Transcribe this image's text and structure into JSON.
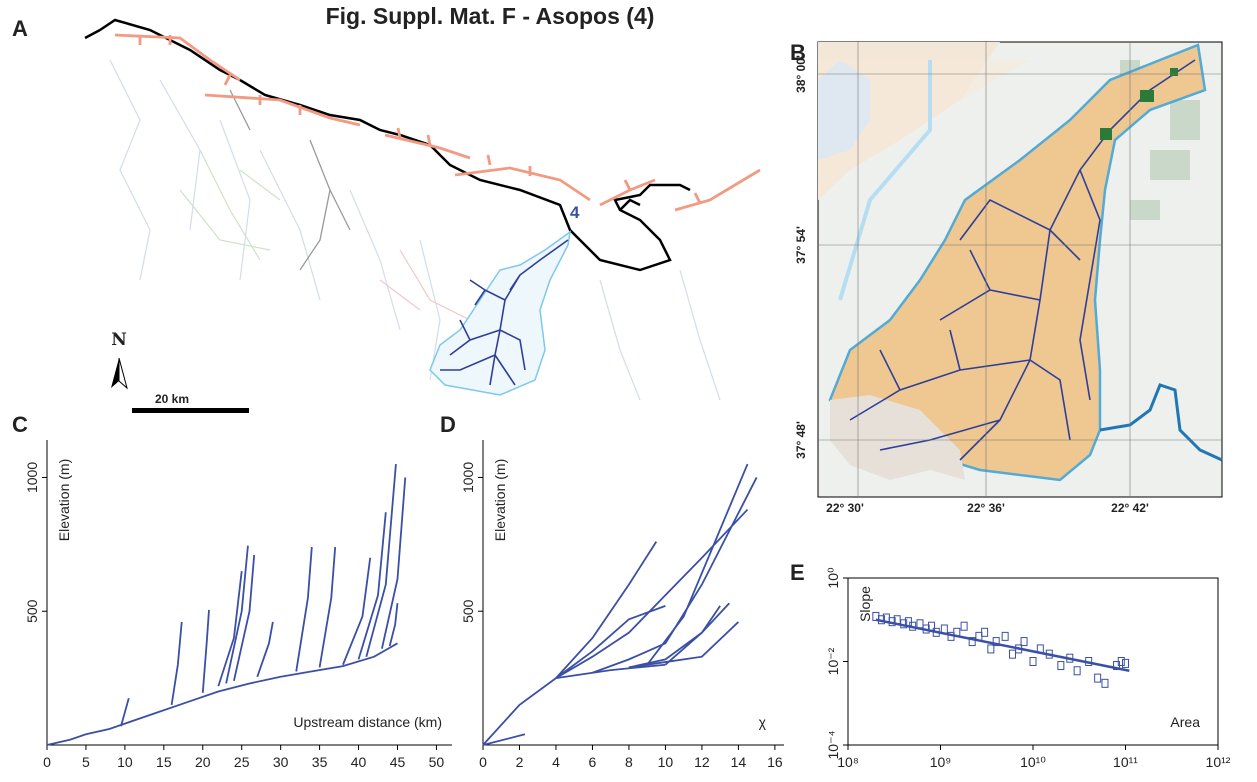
{
  "title": "Fig. Suppl. Mat. F -  Asopos (4)",
  "panels": [
    "A",
    "B",
    "C",
    "D",
    "E"
  ],
  "map_a": {
    "north": "N",
    "scale": "20 km",
    "basin": "4"
  },
  "map_b": {
    "lat_labels": [
      "38° 00'",
      "37° 54'",
      "37° 48'"
    ],
    "lon_labels": [
      "22° 30'",
      "22° 36'",
      "22° 42'"
    ]
  },
  "chart_data": [
    {
      "type": "line",
      "y_label": "Elevation (m)",
      "x_label": "Upstream distance (km)",
      "color": "#3a4fa6",
      "xlim": [
        0,
        52
      ],
      "ylim": [
        0,
        1140
      ],
      "xticks": [
        0,
        5,
        10,
        15,
        20,
        25,
        30,
        35,
        40,
        45,
        50
      ],
      "yticks": [
        500,
        1000
      ],
      "series": [
        {
          "x": [
            0,
            3,
            5,
            8,
            10,
            14,
            18,
            22,
            26,
            30,
            34,
            38,
            42,
            45
          ],
          "values": [
            0,
            20,
            40,
            60,
            80,
            120,
            160,
            200,
            230,
            255,
            275,
            295,
            330,
            380
          ]
        },
        {
          "x": [
            9.5,
            10.5
          ],
          "values": [
            70,
            175
          ]
        },
        {
          "x": [
            16,
            16.8,
            17.3
          ],
          "values": [
            150,
            300,
            460
          ]
        },
        {
          "x": [
            20,
            20.5,
            20.8
          ],
          "values": [
            195,
            380,
            505
          ]
        },
        {
          "x": [
            22,
            24,
            25
          ],
          "values": [
            220,
            400,
            650
          ]
        },
        {
          "x": [
            23,
            25,
            25.8
          ],
          "values": [
            230,
            500,
            745
          ]
        },
        {
          "x": [
            24,
            26,
            26.6
          ],
          "values": [
            240,
            500,
            710
          ]
        },
        {
          "x": [
            27,
            28.5,
            29
          ],
          "values": [
            255,
            380,
            460
          ]
        },
        {
          "x": [
            32,
            33.5,
            34
          ],
          "values": [
            275,
            550,
            740
          ]
        },
        {
          "x": [
            35,
            36.5,
            37
          ],
          "values": [
            290,
            550,
            740
          ]
        },
        {
          "x": [
            38,
            40.5,
            41.5
          ],
          "values": [
            300,
            480,
            700
          ]
        },
        {
          "x": [
            40,
            42.5,
            43.5
          ],
          "values": [
            320,
            560,
            870
          ]
        },
        {
          "x": [
            41,
            43.5,
            44.8
          ],
          "values": [
            330,
            600,
            1050
          ]
        },
        {
          "x": [
            43,
            45,
            46
          ],
          "values": [
            360,
            620,
            1000
          ]
        },
        {
          "x": [
            44,
            44.7,
            45
          ],
          "values": [
            370,
            450,
            530
          ]
        }
      ]
    },
    {
      "type": "line",
      "y_label": "Elevation (m)",
      "x_label": "χ",
      "color": "#3a4fa6",
      "xlim": [
        0,
        16.5
      ],
      "ylim": [
        0,
        1140
      ],
      "xticks": [
        0,
        2,
        4,
        6,
        8,
        10,
        12,
        14,
        16
      ],
      "yticks": [
        500,
        1000
      ],
      "series": [
        {
          "x": [
            0,
            2.3
          ],
          "values": [
            0,
            40
          ]
        },
        {
          "x": [
            0,
            2,
            4,
            6,
            8,
            10
          ],
          "values": [
            0,
            150,
            250,
            350,
            470,
            520
          ]
        },
        {
          "x": [
            4,
            6,
            8,
            10,
            12,
            14.5
          ],
          "values": [
            250,
            330,
            420,
            560,
            700,
            880
          ]
        },
        {
          "x": [
            4,
            6,
            8,
            9.5
          ],
          "values": [
            250,
            400,
            600,
            760
          ]
        },
        {
          "x": [
            6,
            8,
            10,
            12,
            15
          ],
          "values": [
            270,
            320,
            380,
            600,
            1000
          ]
        },
        {
          "x": [
            8,
            10,
            12,
            13.5
          ],
          "values": [
            290,
            320,
            420,
            530
          ]
        },
        {
          "x": [
            8,
            10,
            12,
            14
          ],
          "values": [
            290,
            310,
            330,
            460
          ]
        },
        {
          "x": [
            9,
            11,
            14.5
          ],
          "values": [
            300,
            480,
            1050
          ]
        },
        {
          "x": [
            10,
            12,
            13
          ],
          "values": [
            300,
            420,
            520
          ]
        },
        {
          "x": [
            4,
            7,
            10
          ],
          "values": [
            250,
            280,
            300
          ]
        }
      ]
    },
    {
      "type": "scatter",
      "y_label": "Slope",
      "x_label": "Area",
      "color": "#3a4fa6",
      "log_x": true,
      "log_y": true,
      "xlim": [
        100000000,
        1000000000000
      ],
      "ylim": [
        0.0001,
        1
      ],
      "xticks": [
        {
          "value": 100000000,
          "label": "10⁸"
        },
        {
          "value": 1000000000,
          "label": "10⁹"
        },
        {
          "value": 10000000000,
          "label": "10¹⁰"
        },
        {
          "value": 100000000000,
          "label": "10¹¹"
        },
        {
          "value": 1000000000000,
          "label": "10¹²"
        }
      ],
      "yticks": [
        {
          "value": 0.0001,
          "label": "10⁻⁴"
        },
        {
          "value": 0.01,
          "label": "10⁻²"
        },
        {
          "value": 1,
          "label": "10⁰"
        }
      ],
      "x": [
        200000000,
        230000000,
        260000000,
        300000000,
        340000000,
        400000000,
        450000000,
        500000000,
        600000000,
        700000000,
        800000000,
        900000000,
        1100000000,
        1300000000,
        1500000000,
        1800000000,
        2200000000,
        2600000000,
        3000000000,
        3500000000,
        4000000000,
        5000000000,
        6000000000,
        7000000000,
        8000000000,
        10000000000,
        12000000000,
        15000000000,
        20000000000,
        25000000000,
        30000000000,
        40000000000,
        50000000000,
        60000000000,
        80000000000,
        90000000000,
        100000000000
      ],
      "values": [
        0.12,
        0.1,
        0.11,
        0.09,
        0.1,
        0.08,
        0.09,
        0.07,
        0.08,
        0.06,
        0.07,
        0.05,
        0.06,
        0.04,
        0.05,
        0.07,
        0.03,
        0.04,
        0.05,
        0.02,
        0.03,
        0.04,
        0.015,
        0.02,
        0.03,
        0.01,
        0.02,
        0.015,
        0.008,
        0.012,
        0.006,
        0.01,
        0.004,
        0.003,
        0.008,
        0.01,
        0.009
      ],
      "fit": {
        "x": [
          200000000,
          110000000000
        ],
        "values": [
          0.1,
          0.006
        ]
      }
    }
  ]
}
